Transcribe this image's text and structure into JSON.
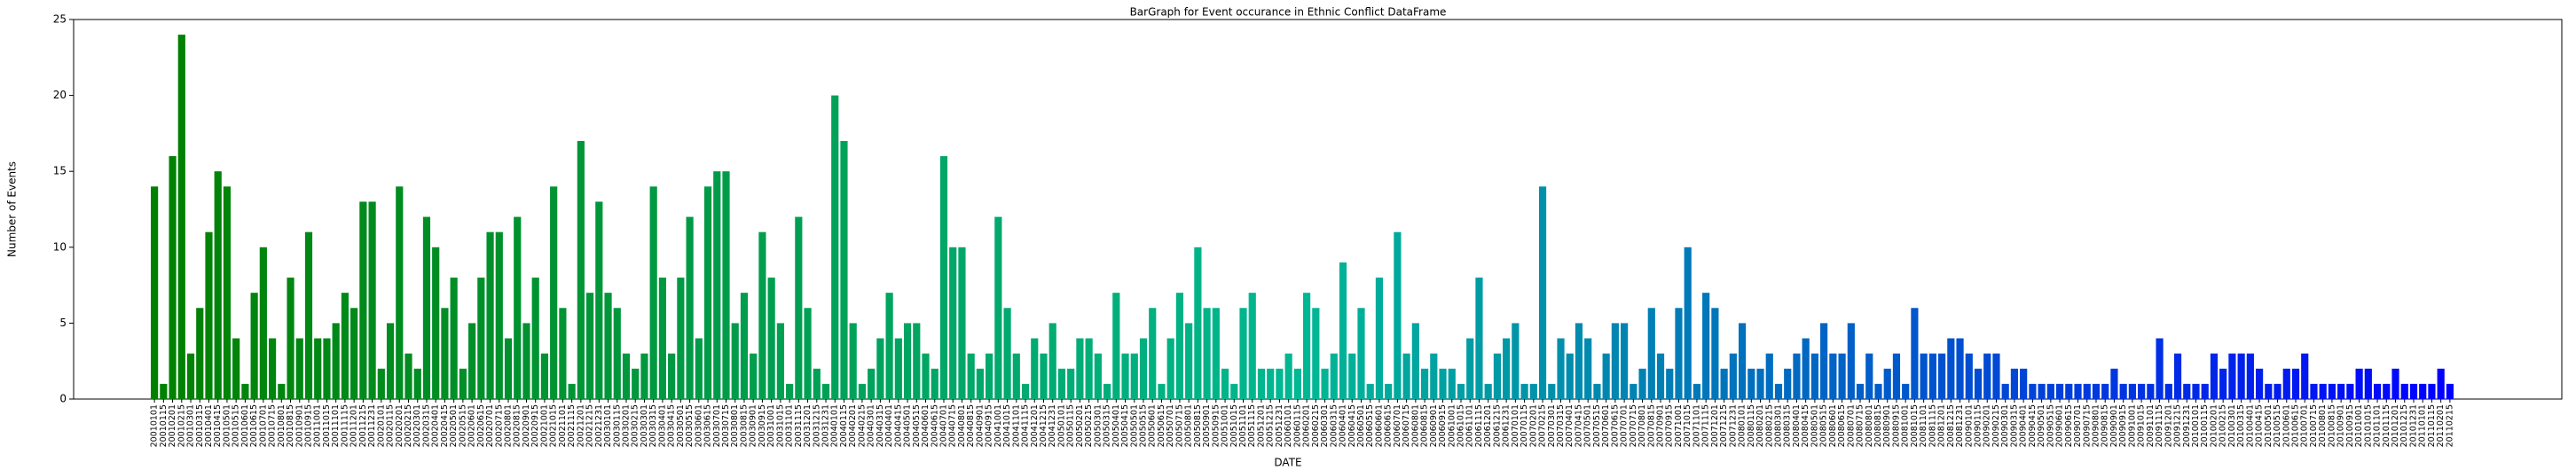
{
  "chart_data": {
    "type": "bar",
    "title": "BarGraph for Event occurance in Ethnic Conflict DataFrame",
    "x_label": "DATE",
    "y_label": "Number of Events",
    "categories": [
      "20010101",
      "20010115",
      "20010201",
      "20010215",
      "20010301",
      "20010315",
      "20010401",
      "20010415",
      "20010501",
      "20010515",
      "20010601",
      "20010615",
      "20010701",
      "20010715",
      "20010801",
      "20010815",
      "20010901",
      "20010915",
      "20011001",
      "20011015",
      "20011101",
      "20011115",
      "20011201",
      "20011215",
      "20011231",
      "20020101",
      "20020115",
      "20020201",
      "20020215",
      "20020301",
      "20020315",
      "20020401",
      "20020415",
      "20020501",
      "20020515",
      "20020601",
      "20020615",
      "20020701",
      "20020715",
      "20020801",
      "20020815",
      "20020901",
      "20020915",
      "20021001",
      "20021015",
      "20021101",
      "20021115",
      "20021201",
      "20021215",
      "20021231",
      "20030101",
      "20030115",
      "20030201",
      "20030215",
      "20030301",
      "20030315",
      "20030401",
      "20030415",
      "20030501",
      "20030515",
      "20030601",
      "20030615",
      "20030701",
      "20030715",
      "20030801",
      "20030815",
      "20030901",
      "20030915",
      "20031001",
      "20031015",
      "20031101",
      "20031115",
      "20031201",
      "20031215",
      "20031231",
      "20040101",
      "20040115",
      "20040201",
      "20040215",
      "20040301",
      "20040315",
      "20040401",
      "20040415",
      "20040501",
      "20040515",
      "20040601",
      "20040615",
      "20040701",
      "20040715",
      "20040801",
      "20040815",
      "20040901",
      "20040915",
      "20041001",
      "20041015",
      "20041101",
      "20041115",
      "20041201",
      "20041215",
      "20041231",
      "20050101",
      "20050115",
      "20050201",
      "20050215",
      "20050301",
      "20050315",
      "20050401",
      "20050415",
      "20050501",
      "20050515",
      "20050601",
      "20050615",
      "20050701",
      "20050715",
      "20050801",
      "20050815",
      "20050901",
      "20050915",
      "20051001",
      "20051015",
      "20051101",
      "20051115",
      "20051201",
      "20051215",
      "20051231",
      "20060101",
      "20060115",
      "20060201",
      "20060215",
      "20060301",
      "20060315",
      "20060401",
      "20060415",
      "20060501",
      "20060515",
      "20060601",
      "20060615",
      "20060701",
      "20060715",
      "20060801",
      "20060815",
      "20060901",
      "20060915",
      "20061001",
      "20061015",
      "20061101",
      "20061115",
      "20061201",
      "20061215",
      "20061231",
      "20070101",
      "20070115",
      "20070201",
      "20070215",
      "20070301",
      "20070315",
      "20070401",
      "20070415",
      "20070501",
      "20070515",
      "20070601",
      "20070615",
      "20070701",
      "20070715",
      "20070801",
      "20070815",
      "20070901",
      "20070915",
      "20071001",
      "20071015",
      "20071101",
      "20071115",
      "20071201",
      "20071215",
      "20071231",
      "20080101",
      "20080115",
      "20080201",
      "20080215",
      "20080301",
      "20080315",
      "20080401",
      "20080415",
      "20080501",
      "20080515",
      "20080601",
      "20080615",
      "20080701",
      "20080715",
      "20080801",
      "20080815",
      "20080901",
      "20080915",
      "20081001",
      "20081015",
      "20081101",
      "20081115",
      "20081201",
      "20081215",
      "20081231",
      "20090101",
      "20090115",
      "20090201",
      "20090215",
      "20090301",
      "20090315",
      "20090401",
      "20090415",
      "20090501",
      "20090515",
      "20090601",
      "20090615",
      "20090701",
      "20090715",
      "20090801",
      "20090815",
      "20090901",
      "20090915",
      "20091001",
      "20091015",
      "20091101",
      "20091115",
      "20091201",
      "20091215",
      "20091231",
      "20100101",
      "20100115",
      "20100201",
      "20100215",
      "20100301",
      "20100315",
      "20100401",
      "20100415",
      "20100501",
      "20100515",
      "20100601",
      "20100615",
      "20100701",
      "20100715",
      "20100801",
      "20100815",
      "20100901",
      "20100915",
      "20101001",
      "20101015",
      "20101101",
      "20101115",
      "20101201",
      "20101215",
      "20101231",
      "20110101",
      "20110115",
      "20110201",
      "20110215"
    ],
    "values": [
      14,
      1,
      16,
      24,
      3,
      6,
      11,
      15,
      14,
      4,
      1,
      7,
      10,
      4,
      1,
      8,
      4,
      11,
      4,
      4,
      5,
      7,
      6,
      13,
      13,
      2,
      5,
      14,
      3,
      2,
      12,
      10,
      6,
      8,
      2,
      5,
      8,
      11,
      11,
      4,
      12,
      5,
      8,
      3,
      14,
      6,
      1,
      17,
      7,
      13,
      7,
      6,
      3,
      2,
      3,
      14,
      8,
      3,
      8,
      12,
      4,
      14,
      15,
      15,
      5,
      7,
      3,
      11,
      8,
      5,
      1,
      12,
      6,
      2,
      1,
      20,
      17,
      5,
      1,
      2,
      4,
      7,
      4,
      5,
      5,
      3,
      2,
      16,
      10,
      10,
      3,
      2,
      3,
      12,
      6,
      3,
      1,
      4,
      3,
      5,
      2,
      2,
      4,
      4,
      3,
      1,
      7,
      3,
      3,
      4,
      6,
      1,
      4,
      7,
      5,
      10,
      6,
      6,
      2,
      1,
      6,
      7,
      2,
      2,
      2,
      3,
      2,
      7,
      6,
      2,
      3,
      9,
      3,
      6,
      1,
      8,
      1,
      11,
      3,
      5,
      2,
      3,
      2,
      2,
      1,
      4,
      8,
      1,
      3,
      4,
      5,
      1,
      1,
      14,
      1,
      4,
      3,
      5,
      4,
      1,
      3,
      5,
      5,
      1,
      2,
      6,
      3,
      2,
      6,
      10,
      1,
      7,
      6,
      2,
      3,
      5,
      2,
      2,
      3,
      1,
      2,
      3,
      4,
      3,
      5,
      3,
      3,
      5,
      1,
      3,
      1,
      2,
      3,
      1,
      6,
      3,
      3,
      3,
      4,
      4,
      3,
      2,
      3,
      3,
      1,
      2,
      2,
      1,
      1,
      1,
      1,
      1,
      1,
      1,
      1,
      1,
      2,
      1,
      1,
      1,
      1,
      4,
      1,
      3,
      1,
      1,
      1,
      3,
      2,
      3,
      3,
      3,
      2,
      1,
      1,
      2,
      2,
      3,
      1,
      1,
      1,
      1,
      1,
      2,
      2,
      1,
      1,
      2,
      1,
      1,
      1,
      1,
      2,
      1
    ],
    "colors": [
      "#008000",
      "#00b894",
      "#0000ff"
    ],
    "ylim": [
      0,
      25
    ],
    "yticks": [
      0,
      5,
      10,
      15,
      20,
      25
    ]
  }
}
